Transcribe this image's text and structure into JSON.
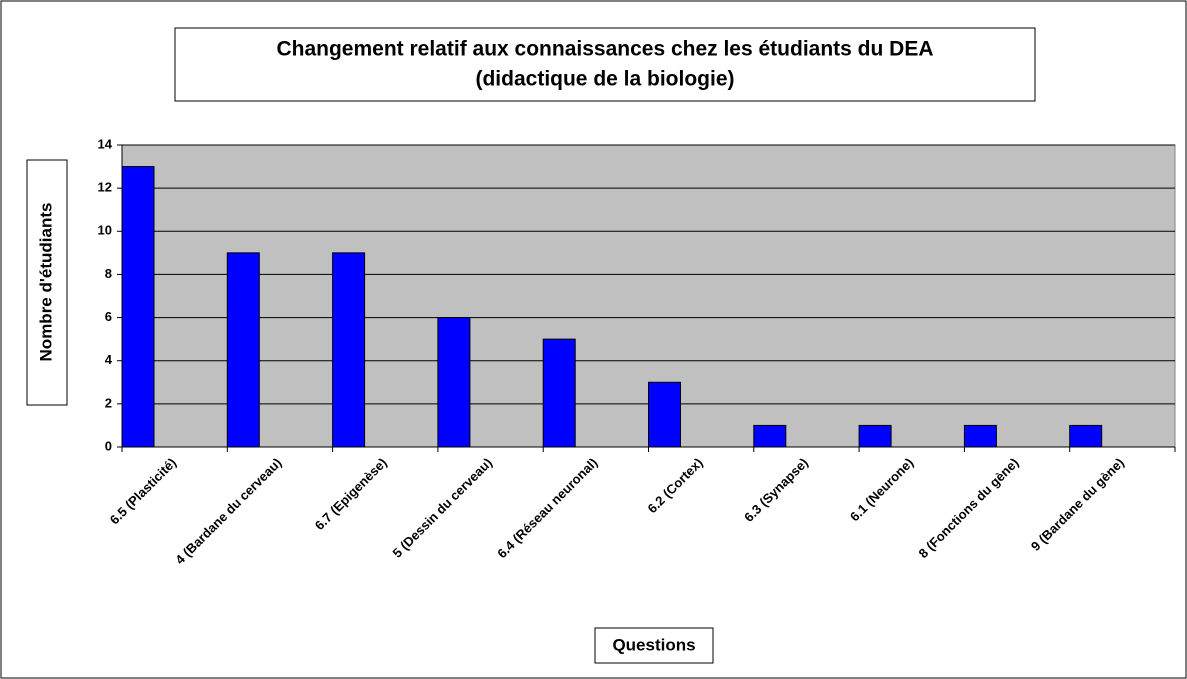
{
  "chart_data": {
    "type": "bar",
    "title": [
      "Changement  relatif aux connaissances  chez les étudiants du DEA",
      "(didactique de la biologie)"
    ],
    "x_label": "Questions",
    "y_label": "Nombre d'étudiants",
    "categories": [
      "6.5 (Plasticité)",
      "4 (Bardane du cerveau)",
      "6.7 (Epigenèse)",
      "5 (Dessin du cerveau)",
      "6.4 (Réseau neuronal)",
      "6.2 (Cortex)",
      "6.3 (Synapse)",
      "6.1 (Neurone)",
      "8 (Fonctions du gène)",
      "9 (Bardane du gène)"
    ],
    "values": [
      13,
      9,
      9,
      6,
      5,
      3,
      1,
      1,
      1,
      1
    ],
    "color": "#0000ff",
    "ylim": [
      0,
      14
    ],
    "yticks": [
      0,
      2,
      4,
      6,
      8,
      10,
      12,
      14
    ],
    "grid": true
  }
}
